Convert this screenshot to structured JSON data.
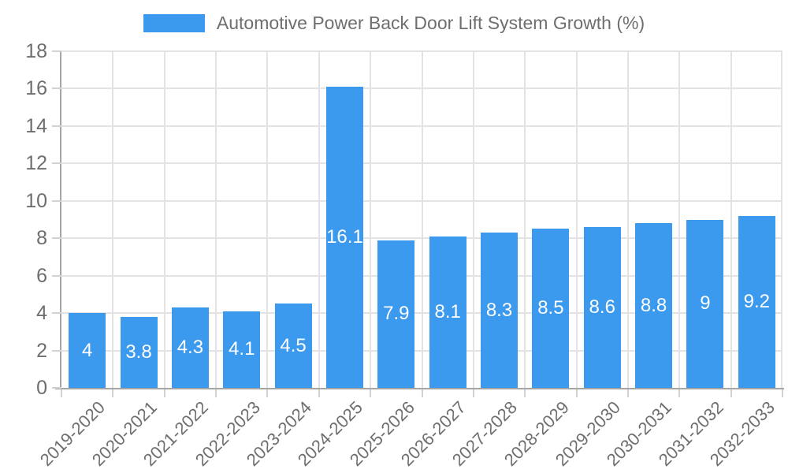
{
  "chart_data": {
    "type": "bar",
    "title": "Automotive Power Back Door Lift System Growth (%)",
    "categories": [
      "2019-2020",
      "2020-2021",
      "2021-2022",
      "2022-2023",
      "2023-2024",
      "2024-2025",
      "2025-2026",
      "2026-2027",
      "2027-2028",
      "2028-2029",
      "2029-2030",
      "2030-2031",
      "2031-2032",
      "2032-2033"
    ],
    "values": [
      4,
      3.8,
      4.3,
      4.1,
      4.5,
      16.1,
      7.9,
      8.1,
      8.3,
      8.5,
      8.6,
      8.8,
      9,
      9.2
    ],
    "xlabel": "",
    "ylabel": "",
    "ylim": [
      0,
      18
    ],
    "yticks": [
      0,
      2,
      4,
      6,
      8,
      10,
      12,
      14,
      16,
      18
    ],
    "grid": true,
    "legend_position": "top",
    "data_labels": "inside-center",
    "colors": {
      "bar": "#3b99ee",
      "value_label": "#ffffff",
      "grid": "#e3e3e3",
      "axis": "#a5a5a5",
      "text": "#6e6e6e"
    }
  }
}
